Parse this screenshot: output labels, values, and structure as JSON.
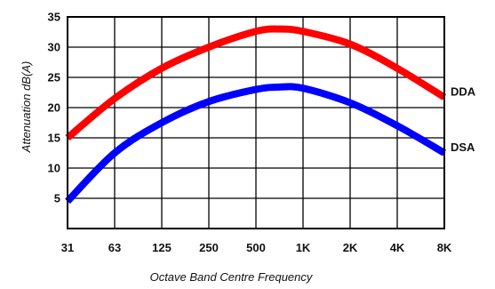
{
  "chart_data": {
    "type": "line",
    "xlabel": "Octave Band Centre Frequency",
    "ylabel": "Attenuation dB(A)",
    "categories": [
      "31",
      "63",
      "125",
      "250",
      "500",
      "1K",
      "2K",
      "4K",
      "8K"
    ],
    "y_ticks": [
      "35",
      "30",
      "25",
      "20",
      "15",
      "10",
      "5"
    ],
    "ylim": [
      0,
      35
    ],
    "grid": true,
    "legend": "labels at right end of lines",
    "series": [
      {
        "name": "DDA",
        "color": "#ff0000",
        "points": [
          [
            0,
            15.0
          ],
          [
            1,
            21.5
          ],
          [
            2,
            26.5
          ],
          [
            3,
            30.0
          ],
          [
            4,
            32.6
          ],
          [
            4.5,
            33.0
          ],
          [
            5,
            32.6
          ],
          [
            6,
            30.5
          ],
          [
            7,
            26.5
          ],
          [
            8,
            21.7
          ]
        ]
      },
      {
        "name": "DSA",
        "color": "#0000ff",
        "points": [
          [
            0,
            4.5
          ],
          [
            1,
            12.5
          ],
          [
            2,
            17.5
          ],
          [
            3,
            21.0
          ],
          [
            4,
            23.0
          ],
          [
            4.5,
            23.4
          ],
          [
            5,
            23.2
          ],
          [
            6,
            20.8
          ],
          [
            7,
            17.0
          ],
          [
            8,
            12.5
          ]
        ]
      }
    ]
  }
}
